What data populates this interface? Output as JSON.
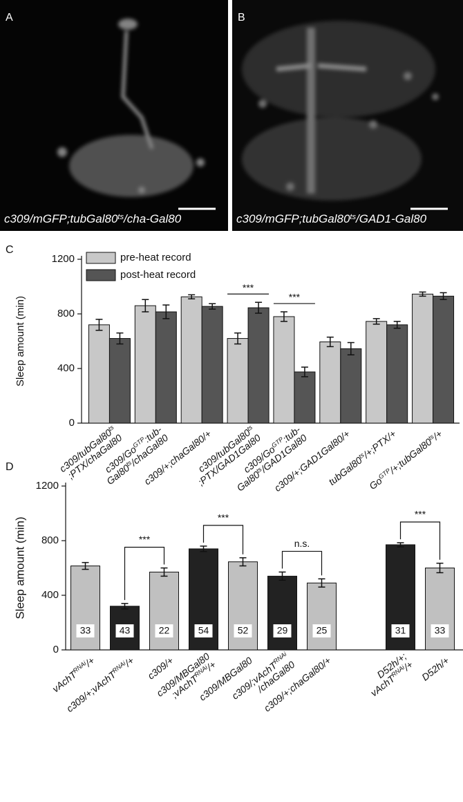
{
  "images": [
    {
      "label": "A",
      "caption": [
        [
          "c309/mGFP;tubGal80",
          "ts",
          "/cha-Gal80"
        ]
      ]
    },
    {
      "label": "B",
      "caption": [
        [
          "c309/mGFP;tubGal80",
          "ts",
          "/GAD1-Gal80"
        ]
      ]
    }
  ],
  "chart_data": [
    {
      "type": "bar",
      "label": "C",
      "ylabel": "Sleep amount (min)",
      "ylim": [
        0,
        1200
      ],
      "yticks": [
        0,
        400,
        800,
        1200
      ],
      "categories": [
        [
          [
            "c309/tubGal80",
            "ts"
          ],
          [
            ";PTX/chaGal80"
          ]
        ],
        [
          [
            "c309/Go",
            "GTP",
            ":tub-"
          ],
          [
            "Gal80",
            "ts",
            "/chaGal80"
          ]
        ],
        [
          [
            "c309/+;chaGal80/+"
          ]
        ],
        [
          [
            "c309/tubGal80",
            "ts"
          ],
          [
            ";PTX/GAD1Gal80"
          ]
        ],
        [
          [
            "c309/Go",
            "GTP",
            ":tub-"
          ],
          [
            "Gal80",
            "ts",
            "/GAD1Gal80"
          ]
        ],
        [
          [
            "c309/+;GAD1Gal80/+"
          ]
        ],
        [
          [
            "tubGal80",
            "ts",
            "/+;PTX/+"
          ]
        ],
        [
          [
            "Go",
            "GTP",
            "/+;tubGal80",
            "ts",
            "/+"
          ]
        ]
      ],
      "series": [
        {
          "name": "pre-heat  record",
          "color": "#c8c8c8",
          "values": [
            720,
            860,
            925,
            620,
            780,
            595,
            745,
            945
          ],
          "errors": [
            40,
            45,
            15,
            40,
            35,
            35,
            20,
            15
          ]
        },
        {
          "name": "post-heat record",
          "color": "#555555",
          "values": [
            620,
            815,
            855,
            845,
            375,
            545,
            720,
            930
          ],
          "errors": [
            40,
            50,
            20,
            40,
            35,
            45,
            25,
            25
          ]
        }
      ],
      "annotations": [
        {
          "text": "***",
          "category": 3
        },
        {
          "text": "***",
          "category": 4
        }
      ]
    },
    {
      "type": "bar",
      "label": "D",
      "ylabel": "Sleep amount (min)",
      "ylim": [
        0,
        1200
      ],
      "yticks": [
        0,
        400,
        800,
        1200
      ],
      "categories": [
        [
          [
            "vAchT",
            "RNAi",
            "/+"
          ]
        ],
        [
          [
            "c309/+;vAchT",
            "RNAi",
            "/+"
          ]
        ],
        [
          [
            "c309/+"
          ]
        ],
        [
          [
            "c309/MBGal80"
          ],
          [
            ";vAchT",
            "RNAi",
            "/+"
          ]
        ],
        [
          [
            "c309/MBGal80"
          ]
        ],
        [
          [
            "c309/;vAchT",
            "RNAi"
          ],
          [
            "/chaGal80"
          ]
        ],
        [
          [
            "c309/+;chaGal80/+"
          ]
        ],
        null,
        [
          [
            "D52h/+;"
          ],
          [
            "vAchT",
            "RNAi",
            "/+"
          ]
        ],
        [
          [
            "D52h/+"
          ]
        ]
      ],
      "colors": [
        "#c0c0c0",
        "#222222",
        "#c0c0c0",
        "#222222",
        "#c0c0c0",
        "#222222",
        "#c0c0c0",
        null,
        "#222222",
        "#c0c0c0"
      ],
      "values": [
        615,
        320,
        570,
        740,
        645,
        540,
        490,
        null,
        770,
        600
      ],
      "errors": [
        25,
        20,
        30,
        20,
        30,
        30,
        30,
        null,
        15,
        35
      ],
      "counts": [
        33,
        43,
        22,
        54,
        52,
        29,
        25,
        null,
        31,
        33
      ],
      "annotations": [
        {
          "text": "***",
          "between": [
            1,
            2
          ]
        },
        {
          "text": "***",
          "between": [
            3,
            4
          ]
        },
        {
          "text": "n.s.",
          "between": [
            5,
            6
          ]
        },
        {
          "text": "***",
          "between": [
            8,
            9
          ]
        }
      ]
    }
  ]
}
